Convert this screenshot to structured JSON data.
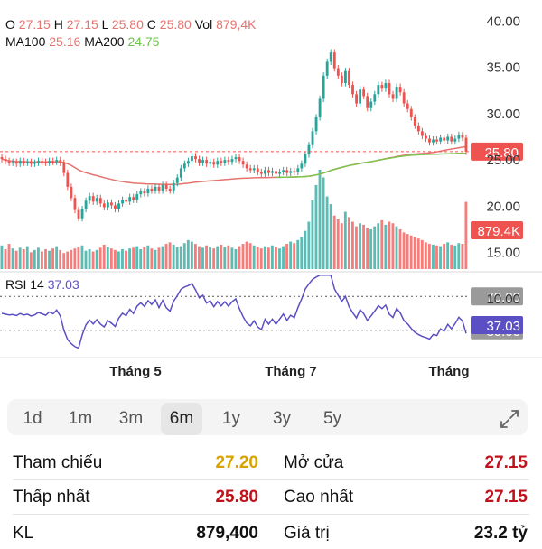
{
  "ohlc": {
    "o_label": "O",
    "o": "27.15",
    "h_label": "H",
    "h": "27.15",
    "l_label": "L",
    "l": "25.80",
    "c_label": "C",
    "c": "25.80",
    "vol_label": "Vol",
    "vol": "879,4K"
  },
  "ma": {
    "ma100_label": "MA100",
    "ma100": "25.16",
    "ma200_label": "MA200",
    "ma200": "24.75"
  },
  "rsi": {
    "label": "RSI 14",
    "value": "37.03"
  },
  "colors": {
    "up": "#26a69a",
    "down": "#ef5350",
    "ma100": "#e5736f",
    "ma200": "#7cc44e",
    "rsi": "#5b4fc4"
  },
  "chart_data": {
    "type": "candlestick",
    "price_axis_ticks": [
      "40.00",
      "35.00",
      "30.00",
      "25.00",
      "20.00",
      "15.00",
      "10.00"
    ],
    "price_range": [
      10,
      41
    ],
    "last_price_label": "25.80",
    "last_volume_label": "879.4K",
    "rsi_ticks": [
      "70.00",
      "30.00"
    ],
    "rsi_value_label": "37.03",
    "x_labels": [
      "Tháng 5",
      "Tháng 7",
      "Tháng"
    ],
    "price_close": [
      25.0,
      24.8,
      24.6,
      24.7,
      24.5,
      24.8,
      24.6,
      24.7,
      24.5,
      24.6,
      24.8,
      24.7,
      24.6,
      24.8,
      24.7,
      24.9,
      24.6,
      23.5,
      22.0,
      20.8,
      19.5,
      18.6,
      19.6,
      20.5,
      21.0,
      20.4,
      20.8,
      20.2,
      19.8,
      20.3,
      20.0,
      19.6,
      20.2,
      20.6,
      20.4,
      20.9,
      20.6,
      21.2,
      21.5,
      21.3,
      21.8,
      21.6,
      22.0,
      21.6,
      22.2,
      21.8,
      21.6,
      22.4,
      23.0,
      24.0,
      24.5,
      24.8,
      25.3,
      25.0,
      24.6,
      24.9,
      24.5,
      24.7,
      24.4,
      24.8,
      24.6,
      24.9,
      24.7,
      25.0,
      25.2,
      24.8,
      24.4,
      24.0,
      23.8,
      24.0,
      23.6,
      23.4,
      23.8,
      23.5,
      23.7,
      23.4,
      23.6,
      23.8,
      23.5,
      23.7,
      23.6,
      24.0,
      24.5,
      25.5,
      26.5,
      28.0,
      29.5,
      31.5,
      34.0,
      35.5,
      36.5,
      34.8,
      34.0,
      33.2,
      34.5,
      33.0,
      32.0,
      31.0,
      32.5,
      31.8,
      30.5,
      31.2,
      32.0,
      33.0,
      32.6,
      33.2,
      32.0,
      31.5,
      32.8,
      32.2,
      31.0,
      30.4,
      29.5,
      28.6,
      28.0,
      27.5,
      27.2,
      26.8,
      27.1,
      26.9,
      27.3,
      27.0,
      27.4,
      26.9,
      27.2,
      27.6,
      27.3,
      25.8
    ],
    "volume_k": [
      310,
      260,
      330,
      270,
      240,
      280,
      260,
      300,
      220,
      250,
      280,
      230,
      260,
      240,
      270,
      300,
      250,
      210,
      230,
      250,
      270,
      290,
      310,
      240,
      260,
      230,
      250,
      280,
      320,
      290,
      270,
      250,
      230,
      260,
      240,
      270,
      280,
      300,
      260,
      290,
      310,
      270,
      250,
      280,
      300,
      330,
      350,
      320,
      290,
      300,
      340,
      380,
      360,
      330,
      300,
      280,
      310,
      290,
      270,
      300,
      320,
      290,
      310,
      280,
      260,
      300,
      330,
      360,
      340,
      310,
      290,
      270,
      300,
      280,
      310,
      290,
      270,
      300,
      330,
      360,
      340,
      380,
      420,
      500,
      620,
      900,
      1100,
      1300,
      1200,
      950,
      850,
      700,
      650,
      600,
      750,
      680,
      620,
      560,
      600,
      580,
      540,
      520,
      560,
      600,
      640,
      580,
      620,
      600,
      560,
      520,
      480,
      460,
      440,
      420,
      400,
      380,
      350,
      330,
      320,
      310,
      300,
      330,
      350,
      320,
      310,
      340,
      330,
      880
    ]
  },
  "timeframes": [
    "1d",
    "1m",
    "3m",
    "6m",
    "1y",
    "3y",
    "5y"
  ],
  "active_timeframe": "6m",
  "stats": {
    "tham_chieu_label": "Tham chiếu",
    "tham_chieu": "27.20",
    "mo_cua_label": "Mở cửa",
    "mo_cua": "27.15",
    "thap_nhat_label": "Thấp nhất",
    "thap_nhat": "25.80",
    "cao_nhat_label": "Cao nhất",
    "cao_nhat": "27.15",
    "kl_label": "KL",
    "kl": "879,400",
    "gia_tri_label": "Giá trị",
    "gia_tri": "23.2 tỷ"
  }
}
